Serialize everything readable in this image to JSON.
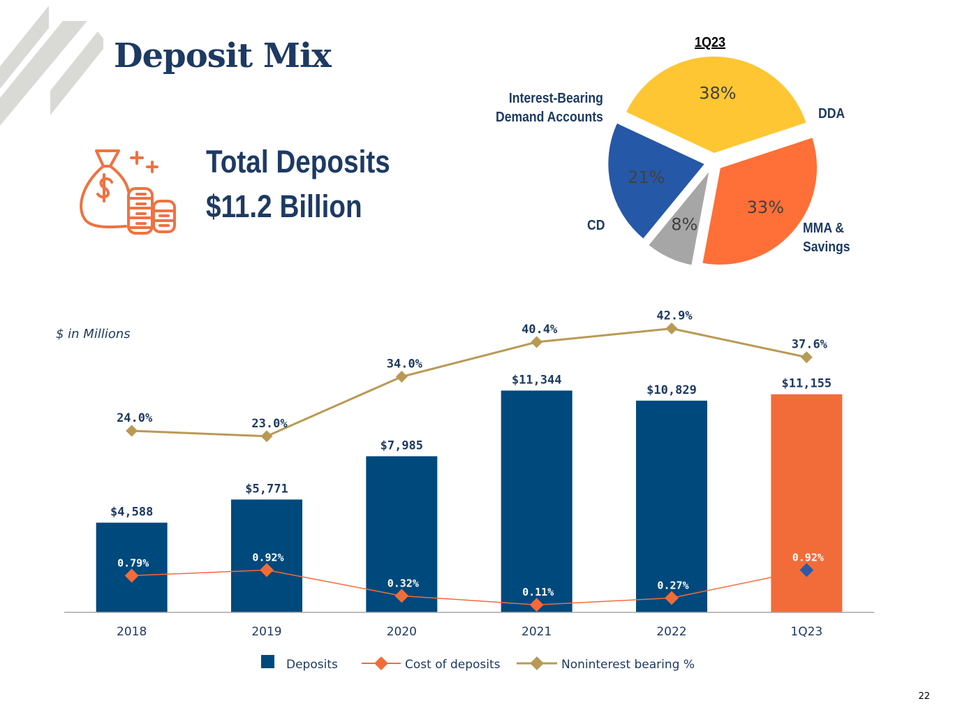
{
  "page": {
    "title": "Deposit Mix",
    "page_number": "22",
    "units_note": "$ in Millions"
  },
  "summary": {
    "label": "Total Deposits",
    "value": "$11.2 Billion"
  },
  "colors": {
    "navy": "#00497c",
    "orange": "#f26c3a",
    "gold": "#b89a55",
    "text_navy": "#1d3a63",
    "pie_dda": "#fec632",
    "pie_mma": "#ff6f37",
    "pie_cd": "#a6a6a6",
    "pie_ib": "#2658a8",
    "cost_highlight": "#2d5aa8"
  },
  "pie": {
    "title": "1Q23",
    "slices": [
      {
        "name": "DDA",
        "label": "DDA",
        "value": 38,
        "pct_label": "38%"
      },
      {
        "name": "MMA & Savings",
        "label_lines": [
          "MMA &",
          "Savings"
        ],
        "value": 33,
        "pct_label": "33%"
      },
      {
        "name": "CD",
        "label": "CD",
        "value": 8,
        "pct_label": "8%"
      },
      {
        "name": "Interest-Bearing Demand Accounts",
        "label_lines": [
          "Interest-Bearing",
          "Demand Accounts"
        ],
        "value": 21,
        "pct_label": "21%"
      }
    ]
  },
  "legend": {
    "deposits": "Deposits",
    "cost": "Cost of deposits",
    "nonint": "Noninterest bearing %"
  },
  "chart_data": [
    {
      "type": "bar",
      "title": "",
      "xlabel": "",
      "ylabel": "",
      "categories": [
        "2018",
        "2019",
        "2020",
        "2021",
        "2022",
        "1Q23"
      ],
      "series": [
        {
          "name": "Deposits",
          "values": [
            4588,
            5771,
            7985,
            11344,
            10829,
            11155
          ],
          "labels": [
            "$4,588",
            "$5,771",
            "$7,985",
            "$11,344",
            "$10,829",
            "$11,155"
          ]
        },
        {
          "name": "Cost of deposits",
          "type": "line",
          "values": [
            0.79,
            0.92,
            0.32,
            0.11,
            0.27,
            0.92
          ],
          "labels": [
            "0.79%",
            "0.92%",
            "0.32%",
            "0.11%",
            "0.27%",
            "0.92%"
          ]
        },
        {
          "name": "Noninterest bearing %",
          "type": "line",
          "values": [
            24.0,
            23.0,
            34.0,
            40.4,
            42.9,
            37.6
          ],
          "labels": [
            "24.0%",
            "23.0%",
            "34.0%",
            "40.4%",
            "42.9%",
            "37.6%"
          ]
        }
      ],
      "ylim": [
        0,
        14000
      ],
      "legend_position": "bottom"
    },
    {
      "type": "pie",
      "title": "1Q23",
      "categories": [
        "DDA",
        "MMA & Savings",
        "CD",
        "Interest-Bearing Demand Accounts"
      ],
      "values": [
        38,
        33,
        8,
        21
      ]
    }
  ]
}
